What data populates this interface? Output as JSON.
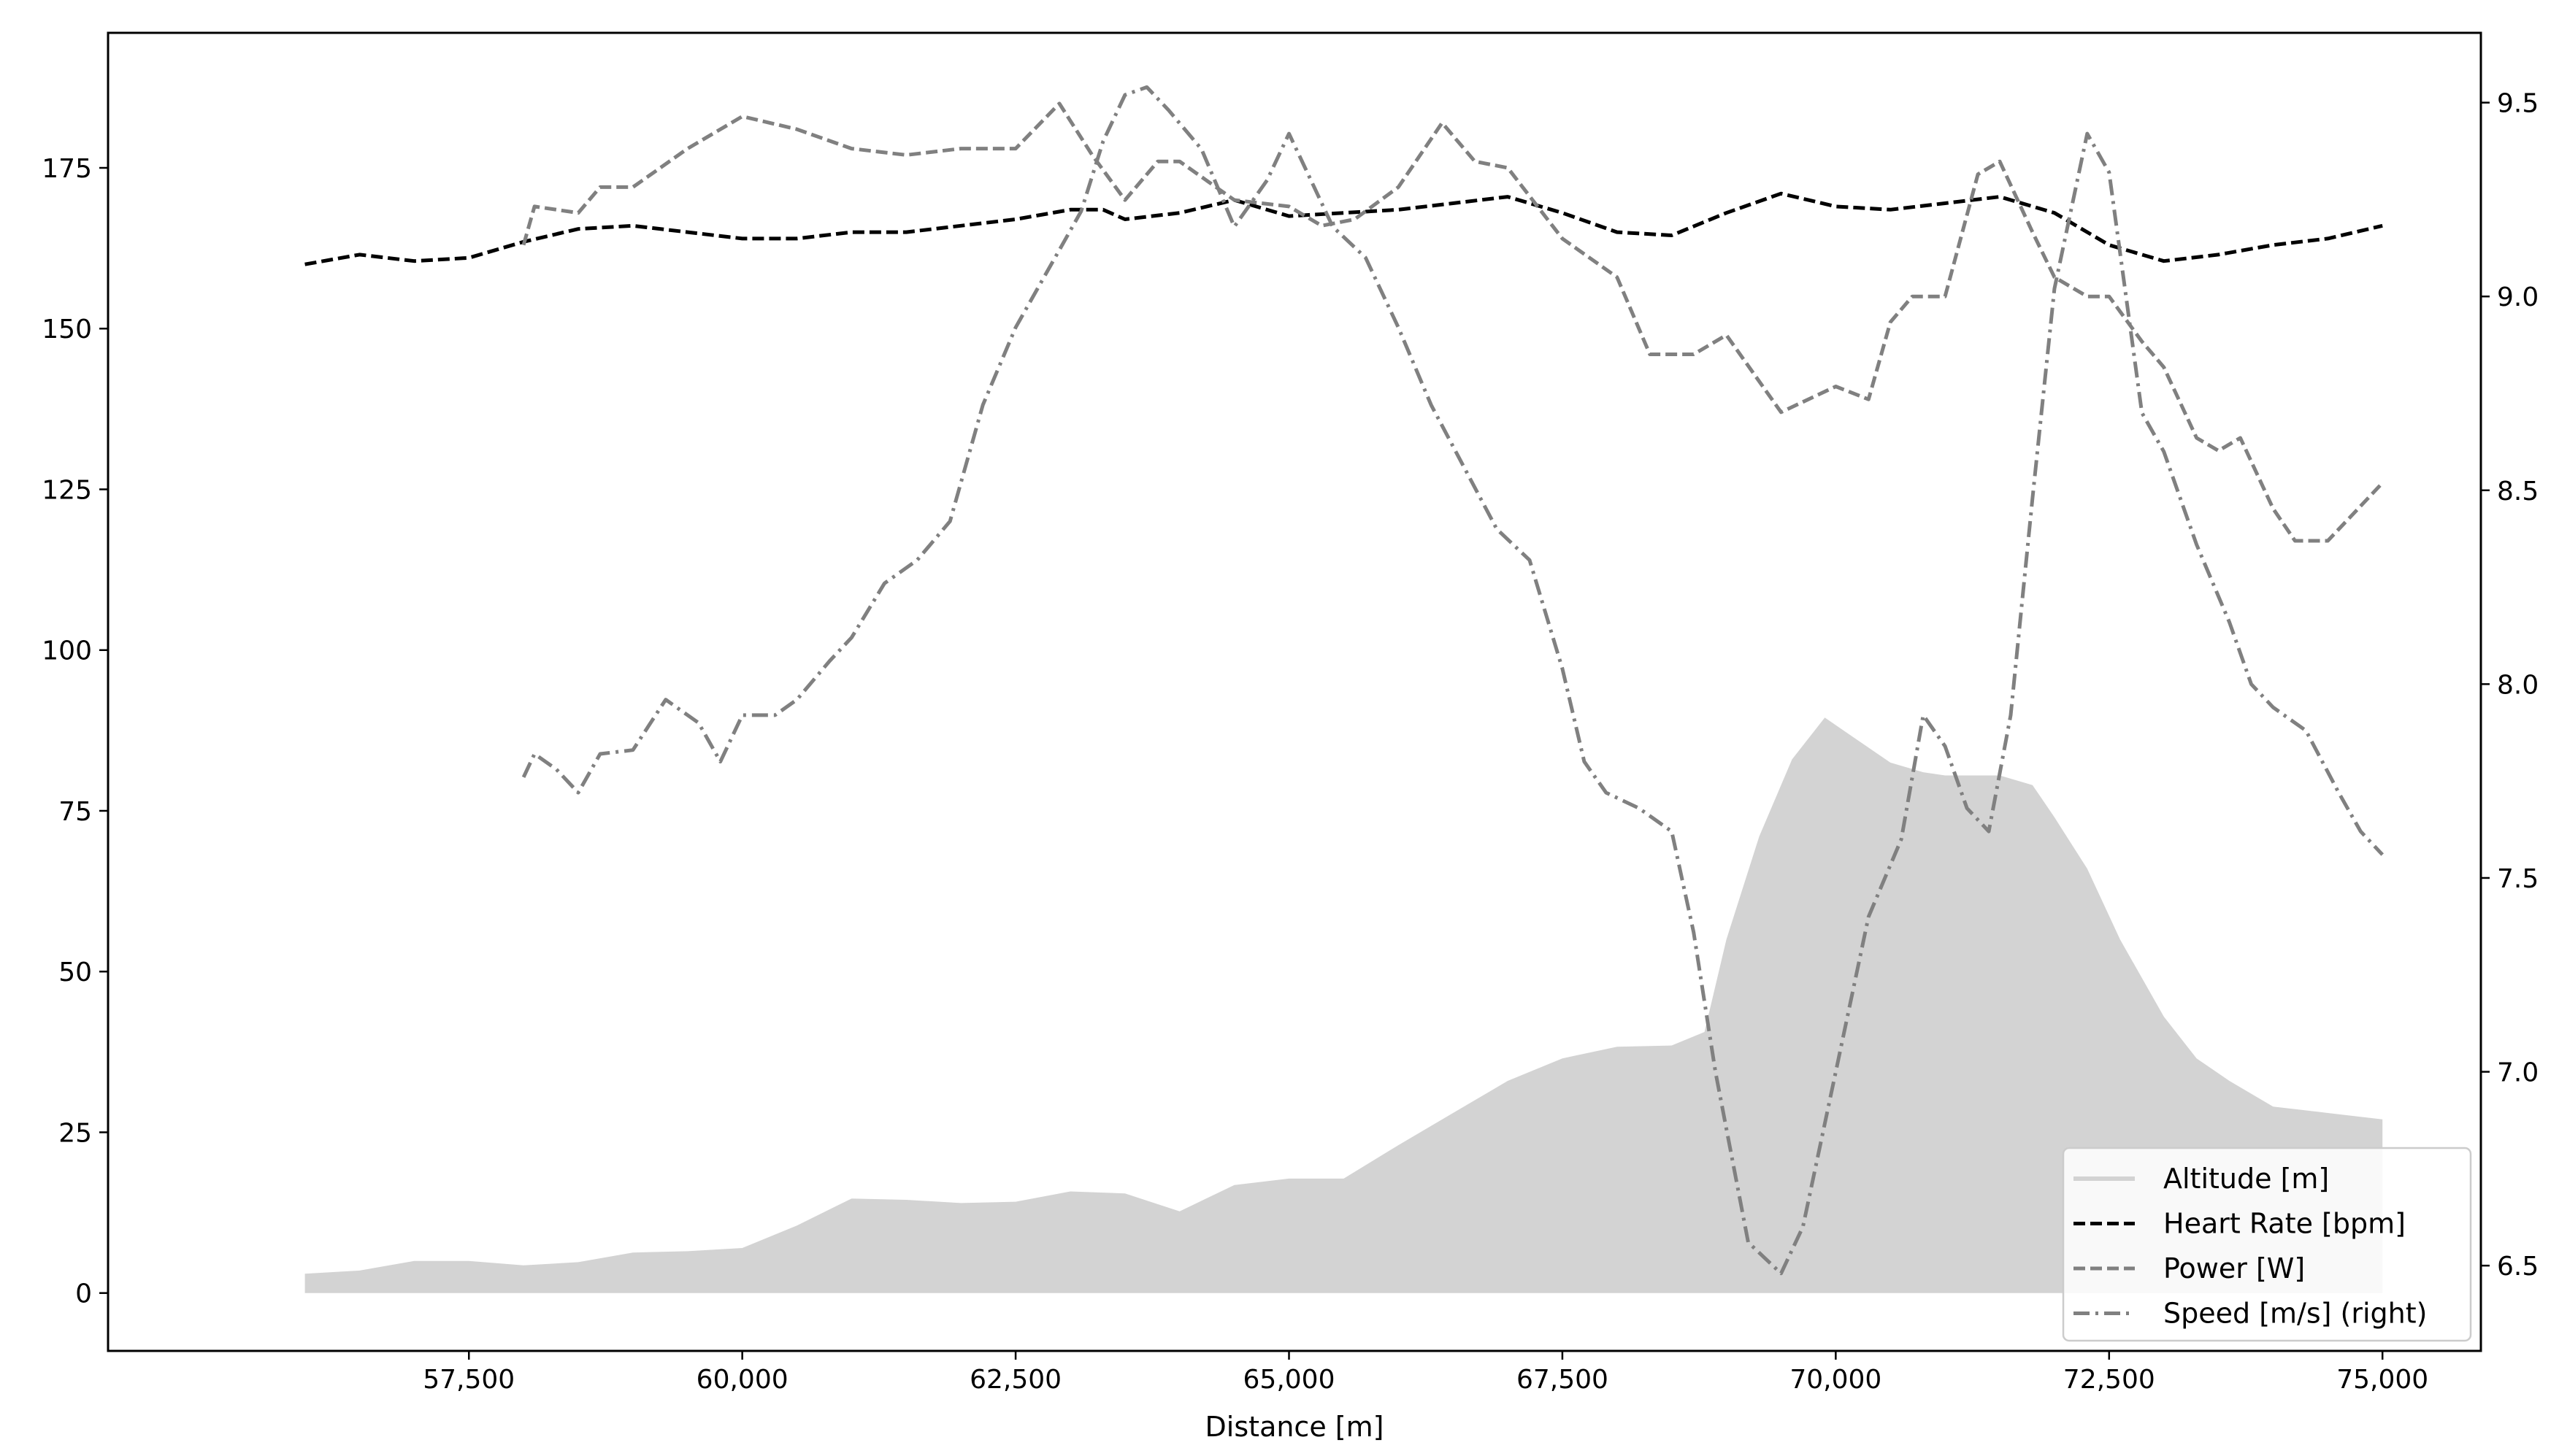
{
  "chart_data": {
    "type": "line",
    "xlabel": "Distance [m]",
    "ylabel": "",
    "ylabel_right": "",
    "xlim": [
      54200,
      75900
    ],
    "ylim": [
      -9,
      196
    ],
    "ylim_right": [
      6.28,
      9.68
    ],
    "x_ticks": [
      {
        "value": 57500,
        "label": "57,500"
      },
      {
        "value": 60000,
        "label": "60,000"
      },
      {
        "value": 62500,
        "label": "62,500"
      },
      {
        "value": 65000,
        "label": "65,000"
      },
      {
        "value": 67500,
        "label": "67,500"
      },
      {
        "value": 70000,
        "label": "70,000"
      },
      {
        "value": 72500,
        "label": "72,500"
      },
      {
        "value": 75000,
        "label": "75,000"
      }
    ],
    "y_ticks": [
      {
        "value": 0,
        "label": "0"
      },
      {
        "value": 25,
        "label": "25"
      },
      {
        "value": 50,
        "label": "50"
      },
      {
        "value": 75,
        "label": "75"
      },
      {
        "value": 100,
        "label": "100"
      },
      {
        "value": 125,
        "label": "125"
      },
      {
        "value": 150,
        "label": "150"
      },
      {
        "value": 175,
        "label": "175"
      }
    ],
    "y_ticks_right": [
      {
        "value": 6.5,
        "label": "6.5"
      },
      {
        "value": 7.0,
        "label": "7.0"
      },
      {
        "value": 7.5,
        "label": "7.5"
      },
      {
        "value": 8.0,
        "label": "8.0"
      },
      {
        "value": 8.5,
        "label": "8.5"
      },
      {
        "value": 9.0,
        "label": "9.0"
      },
      {
        "value": 9.5,
        "label": "9.5"
      }
    ],
    "grid": false,
    "legend_position": "bottom-right",
    "series": [
      {
        "name": "Altitude [m]",
        "kind": "area",
        "axis": "left",
        "color": "#d3d3d3",
        "x": [
          56000,
          56500,
          57000,
          57500,
          58000,
          58500,
          59000,
          59500,
          60000,
          60500,
          61000,
          61500,
          62000,
          62500,
          63000,
          63500,
          64000,
          64500,
          65000,
          65500,
          66000,
          66500,
          67000,
          67500,
          68000,
          68500,
          68800,
          69000,
          69300,
          69600,
          69900,
          70200,
          70500,
          70800,
          71000,
          71500,
          71800,
          72000,
          72300,
          72600,
          73000,
          73300,
          73600,
          74000,
          74500,
          75000
        ],
        "y": [
          3,
          3.5,
          5,
          5,
          4.3,
          4.8,
          6.3,
          6.5,
          7,
          10.5,
          14.7,
          14.5,
          14,
          14.2,
          15.8,
          15.5,
          12.7,
          16.8,
          17.8,
          17.8,
          23,
          28,
          33,
          36.5,
          38.3,
          38.5,
          40.6,
          55,
          71,
          83,
          89.5,
          86,
          82.5,
          81,
          80.5,
          80.5,
          79,
          74,
          66,
          55,
          43,
          36.5,
          33,
          29,
          28,
          27
        ]
      },
      {
        "name": "Heart Rate [bpm]",
        "kind": "line",
        "axis": "left",
        "color": "#000000",
        "dash": "dashed",
        "x": [
          56000,
          56500,
          57000,
          57500,
          58000,
          58500,
          59000,
          59500,
          60000,
          60500,
          61000,
          61500,
          62000,
          62500,
          63000,
          63300,
          63500,
          64000,
          64500,
          65000,
          65500,
          66000,
          66500,
          67000,
          67500,
          68000,
          68500,
          69000,
          69500,
          70000,
          70500,
          71000,
          71500,
          72000,
          72500,
          73000,
          73500,
          74000,
          74500,
          75000
        ],
        "y": [
          160,
          161.5,
          160.5,
          161,
          163.5,
          165.5,
          166,
          165,
          164,
          164,
          165,
          165,
          166,
          167,
          168.5,
          168.5,
          167,
          168,
          170,
          167.5,
          168,
          168.5,
          169.5,
          170.5,
          168,
          165,
          164.5,
          168,
          171,
          169,
          168.5,
          169.5,
          170.5,
          168,
          163,
          160.5,
          161.5,
          163,
          164,
          166
        ]
      },
      {
        "name": "Power [W]",
        "kind": "line",
        "axis": "left",
        "color": "#808080",
        "dash": "dashed",
        "x": [
          58000,
          58100,
          58500,
          58700,
          59000,
          59500,
          60000,
          60500,
          61000,
          61500,
          62000,
          62500,
          62900,
          63200,
          63500,
          63800,
          64000,
          64500,
          65000,
          65300,
          65600,
          66000,
          66400,
          66700,
          67000,
          67500,
          68000,
          68300,
          68700,
          69000,
          69500,
          70000,
          70300,
          70500,
          70700,
          71000,
          71300,
          71500,
          71800,
          72000,
          72300,
          72500,
          72800,
          73000,
          73300,
          73500,
          73700,
          74000,
          74200,
          74500,
          75000
        ],
        "y": [
          163,
          169,
          168,
          172,
          172,
          178,
          183,
          181,
          178,
          177,
          178,
          178,
          185,
          177,
          170,
          176,
          176,
          170,
          169,
          166,
          167,
          172,
          182,
          176,
          175,
          164,
          158,
          146,
          146,
          149,
          137,
          141,
          139,
          151,
          155,
          155,
          174,
          176,
          165,
          158,
          155,
          155,
          148,
          144,
          133,
          131,
          133,
          122,
          117,
          117,
          126
        ]
      },
      {
        "name": "Speed [m/s] (right)",
        "kind": "line",
        "axis": "right",
        "color": "#808080",
        "dash": "dashdot",
        "x": [
          58000,
          58100,
          58300,
          58500,
          58700,
          59000,
          59300,
          59600,
          59800,
          60000,
          60300,
          60500,
          60800,
          61000,
          61300,
          61600,
          61900,
          62200,
          62500,
          62700,
          62900,
          63100,
          63300,
          63500,
          63700,
          63900,
          64200,
          64500,
          64800,
          65000,
          65200,
          65400,
          65700,
          66000,
          66300,
          66600,
          66900,
          67200,
          67500,
          67700,
          67900,
          68200,
          68500,
          68700,
          68900,
          69200,
          69500,
          69700,
          70000,
          70300,
          70600,
          70800,
          71000,
          71200,
          71400,
          71600,
          71800,
          72000,
          72300,
          72500,
          72800,
          73000,
          73300,
          73600,
          73800,
          74000,
          74300,
          74600,
          74800,
          75000
        ],
        "y": [
          7.76,
          7.82,
          7.78,
          7.72,
          7.82,
          7.83,
          7.96,
          7.9,
          7.8,
          7.92,
          7.92,
          7.96,
          8.06,
          8.12,
          8.26,
          8.32,
          8.42,
          8.72,
          8.92,
          9.02,
          9.12,
          9.22,
          9.4,
          9.52,
          9.54,
          9.48,
          9.38,
          9.18,
          9.3,
          9.42,
          9.3,
          9.18,
          9.1,
          8.92,
          8.72,
          8.56,
          8.4,
          8.32,
          8.04,
          7.8,
          7.72,
          7.68,
          7.62,
          7.36,
          7.0,
          6.56,
          6.48,
          6.6,
          7.0,
          7.4,
          7.6,
          7.92,
          7.84,
          7.68,
          7.62,
          7.92,
          8.48,
          9.02,
          9.42,
          9.32,
          8.7,
          8.6,
          8.36,
          8.16,
          8.0,
          7.94,
          7.88,
          7.72,
          7.62,
          7.56
        ]
      }
    ]
  }
}
